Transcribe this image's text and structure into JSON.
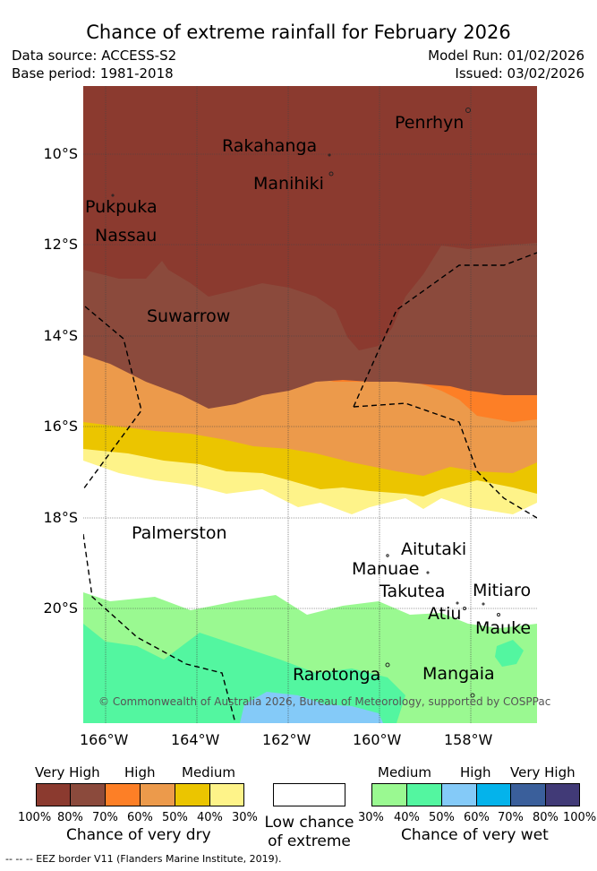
{
  "title": "Chance of extreme rainfall for February 2026",
  "meta": {
    "data_source": "Data source: ACCESS-S2",
    "base_period": "Base period: 1981-2018",
    "model_run": "Model Run: 01/02/2026",
    "issued": "Issued: 03/02/2026"
  },
  "map": {
    "lat_labels": [
      "10°S",
      "12°S",
      "14°S",
      "16°S",
      "18°S",
      "20°S"
    ],
    "lon_labels": [
      "166°W",
      "164°W",
      "162°W",
      "160°W",
      "158°W"
    ],
    "places": {
      "penrhyn": "Penrhyn",
      "rakahanga": "Rakahanga",
      "manihiki": "Manihiki",
      "pukpuka": "Pukpuka",
      "nassau": "Nassau",
      "suwarrow": "Suwarrow",
      "palmerston": "Palmerston",
      "aitutaki": "Aitutaki",
      "manuae": "Manuae",
      "takutea": "Takutea",
      "mitiaro": "Mitiaro",
      "atiu": "Atiu",
      "mauke": "Mauke",
      "rarotonga": "Rarotonga",
      "mangaia": "Mangaia"
    },
    "copyright": "© Commonwealth of Australia 2026, Bureau of Meteorology, supported by COSPPac"
  },
  "legend": {
    "dry": {
      "headers": [
        "Very High",
        "High",
        "Medium"
      ],
      "percents": [
        "100%",
        "80%",
        "70%",
        "60%",
        "50%",
        "40%",
        "30%"
      ],
      "caption": "Chance of very dry",
      "colors": [
        "#8b3a2f",
        "#8b4a3c",
        "#fd7f26",
        "#ec9a4b",
        "#ebc500",
        "#fef389"
      ]
    },
    "neutral": {
      "caption_line1": "Low chance",
      "caption_line2": "of extreme",
      "color": "#ffffff"
    },
    "wet": {
      "headers": [
        "Medium",
        "High",
        "Very High"
      ],
      "percents": [
        "30%",
        "40%",
        "50%",
        "60%",
        "70%",
        "80%",
        "100%"
      ],
      "caption": "Chance of very wet",
      "colors": [
        "#9af991",
        "#53f6a0",
        "#84caf8",
        "#04b3eb",
        "#3a5f9b",
        "#413a77"
      ]
    },
    "eez_note": "--  --  -- EEZ border V11 (Flanders Marine Institute, 2019)."
  }
}
